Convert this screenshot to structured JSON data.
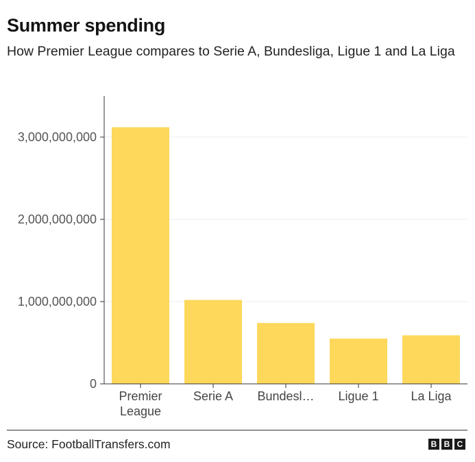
{
  "title": "Summer spending",
  "subtitle": "How Premier League compares to Serie A, Bundesliga, Ligue 1 and La Liga",
  "source": "Source: FootballTransfers.com",
  "logo": [
    "B",
    "B",
    "C"
  ],
  "colors": {
    "bar": "#fdd85a",
    "grid": "#eeeeee",
    "axis": "#333333"
  },
  "chart_data": {
    "type": "bar",
    "title": "Summer spending",
    "categories": [
      "Premier League",
      "Serie A",
      "Bundesliga",
      "Ligue 1",
      "La Liga"
    ],
    "category_labels": [
      [
        "Premier",
        "League"
      ],
      [
        "Serie A"
      ],
      [
        "Bundesl…"
      ],
      [
        "Ligue 1"
      ],
      [
        "La Liga"
      ]
    ],
    "values": [
      3120000000,
      1020000000,
      740000000,
      550000000,
      590000000
    ],
    "ylim": [
      0,
      3500000000
    ],
    "yticks": [
      0,
      1000000000,
      2000000000,
      3000000000
    ],
    "ytick_labels": [
      "0",
      "1,000,000,000",
      "2,000,000,000",
      "3,000,000,000"
    ],
    "grid": true,
    "xlabel": "",
    "ylabel": ""
  }
}
